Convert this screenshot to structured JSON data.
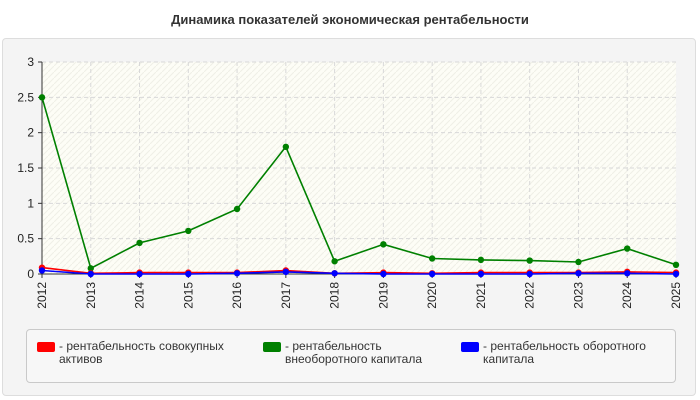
{
  "title": "Динамика показателей экономическая рентабельности",
  "chart_data": {
    "type": "line",
    "title": "Динамика показателей экономическая рентабельности",
    "x": [
      "2012",
      "2013",
      "2014",
      "2015",
      "2016",
      "2017",
      "2018",
      "2019",
      "2020",
      "2021",
      "2022",
      "2023",
      "2024",
      "2025"
    ],
    "ylim": [
      0,
      3
    ],
    "yticks": [
      "0",
      "0.5",
      "1",
      "1.5",
      "2",
      "2.5",
      "3"
    ],
    "grid": true,
    "legend_position": "bottom",
    "series": [
      {
        "name": "рентабельность совокупных активов",
        "color": "#ff0000",
        "values": [
          0.09,
          0.01,
          0.02,
          0.02,
          0.02,
          0.05,
          0.01,
          0.02,
          0.01,
          0.02,
          0.02,
          0.02,
          0.03,
          0.02
        ]
      },
      {
        "name": "рентабельность внеоборотного капитала",
        "color": "#008000",
        "values": [
          2.5,
          0.08,
          0.44,
          0.61,
          0.92,
          1.8,
          0.18,
          0.42,
          0.22,
          0.2,
          0.19,
          0.17,
          0.36,
          0.13
        ]
      },
      {
        "name": "рентабельность оборотного капитала",
        "color": "#0000ff",
        "values": [
          0.05,
          0.0,
          0.0,
          0.0,
          0.01,
          0.03,
          0.01,
          0.0,
          0.0,
          0.0,
          0.0,
          0.01,
          0.01,
          0.0
        ]
      }
    ]
  }
}
